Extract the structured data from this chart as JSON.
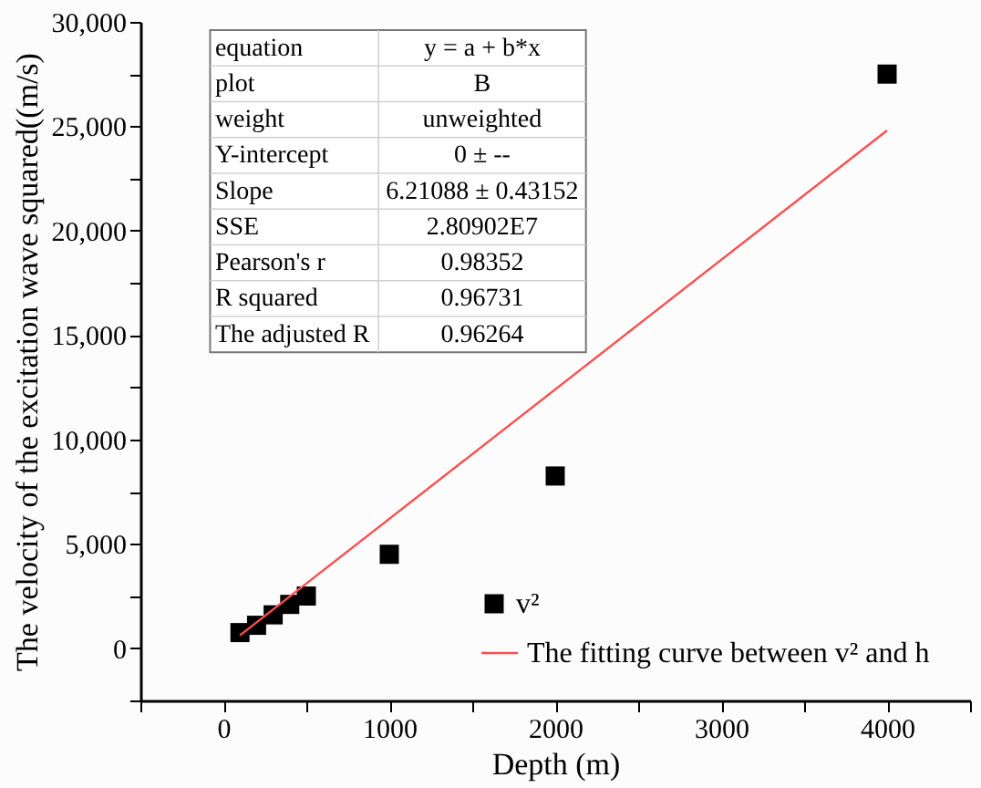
{
  "chart_data": {
    "type": "scatter",
    "xlabel": "Depth (m)",
    "ylabel": "The velocity of the excitation wave squared((m/s)",
    "xlim": [
      -500,
      4500
    ],
    "ylim": [
      -2500,
      30000
    ],
    "xticks": [
      {
        "value": -500,
        "label": null
      },
      0,
      {
        "value": 500,
        "label": null
      },
      1000,
      {
        "value": 1500,
        "label": null
      },
      2000,
      {
        "value": 2500,
        "label": null
      },
      3000,
      {
        "value": 3500,
        "label": null
      },
      4000,
      {
        "value": 4500,
        "label": null
      }
    ],
    "yticks": [
      {
        "value": -2500,
        "label": null
      },
      0,
      {
        "value": 2500,
        "label": null
      },
      {
        "value": 5000,
        "label": "5,000"
      },
      {
        "value": 7500,
        "label": null
      },
      {
        "value": 10000,
        "label": "10,000"
      },
      {
        "value": 12500,
        "label": null
      },
      {
        "value": 15000,
        "label": "15,000"
      },
      {
        "value": 17500,
        "label": null
      },
      {
        "value": 20000,
        "label": "20,000"
      },
      {
        "value": 22500,
        "label": null
      },
      {
        "value": 25000,
        "label": "25,000"
      },
      {
        "value": 27500,
        "label": null
      },
      {
        "value": 30000,
        "label": "30,000"
      }
    ],
    "grid": false,
    "legend": "bottom right",
    "series": [
      {
        "name": "v²",
        "color": "#000000",
        "marker": "square",
        "x": [
          100,
          200,
          300,
          400,
          500,
          1000,
          2000,
          4000
        ],
        "values": [
          750,
          1100,
          1600,
          2100,
          2500,
          4500,
          8250,
          27500
        ]
      },
      {
        "name": "The fitting curve between v² and h",
        "type": "line",
        "color": "#ff4d4d",
        "x": [
          100,
          4000
        ],
        "values": [
          620,
          24800
        ]
      }
    ],
    "annotations": [
      "equation",
      "y = a + b*x",
      "plot",
      "B",
      "weight",
      "unweighted",
      "Y-intercept",
      "0 ± --",
      "Slope",
      "6.21088 ± 0.43152",
      "SSE",
      "2.80902E7",
      "Pearson's r",
      "0.98352",
      "R squared",
      "0.96731",
      "The adjusted R",
      "0.96264"
    ]
  }
}
